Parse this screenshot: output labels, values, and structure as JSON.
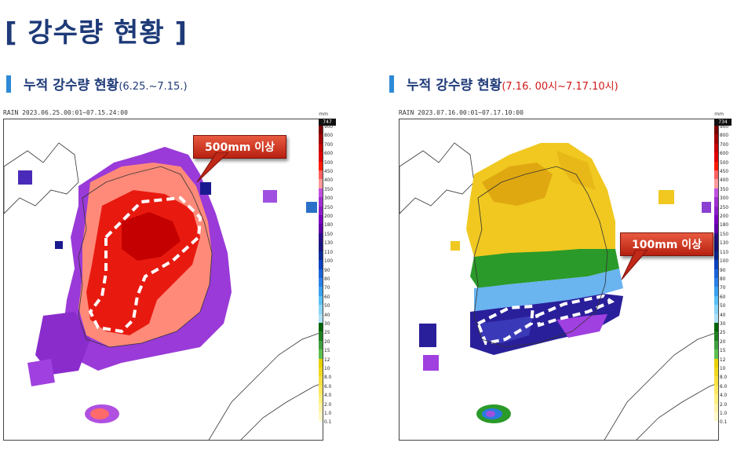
{
  "page": {
    "title": "[ 강수량 현황 ]"
  },
  "panels": [
    {
      "heading": "누적 강수량 현황",
      "period": "(6.25.~7.15.)",
      "map_header": "RAIN  2023.06.25.00:01~07.15.24:00",
      "unit": "mm",
      "max_value": "747",
      "callout": "500mm 이상",
      "period_color": "#1e3a78"
    },
    {
      "heading": "누적 강수량 현황",
      "period": "(7.16. 00시~7.17.10시)",
      "map_header": "RAIN  2023.07.16.00:01~07.17.10:00",
      "unit": "mm",
      "max_value": "734",
      "callout": "100mm 이상",
      "period_color": "#d01818"
    }
  ],
  "legend": {
    "ticks": [
      "900",
      "800",
      "700",
      "600",
      "500",
      "450",
      "400",
      "350",
      "300",
      "250",
      "200",
      "180",
      "150",
      "130",
      "110",
      "100",
      "90",
      "80",
      "70",
      "60",
      "50",
      "40",
      "30",
      "25",
      "20",
      "15",
      "12",
      "10",
      "8.0",
      "6.0",
      "4.0",
      "2.0",
      "1.0",
      "0.1"
    ],
    "colors": [
      "#7a0000",
      "#a00000",
      "#c80000",
      "#e00000",
      "#ff1a00",
      "#ff6060",
      "#ff9a9a",
      "#c050e0",
      "#a030d0",
      "#8a1fc8",
      "#7a00c0",
      "#6000a8",
      "#2a0f8a",
      "#1a1580",
      "#0a2a9a",
      "#0a42c0",
      "#1a64d8",
      "#2a80e8",
      "#3aa0f0",
      "#5ac0f8",
      "#8ad4f8",
      "#aee0f8",
      "#006400",
      "#208020",
      "#40a040",
      "#5ec050",
      "#e8d000",
      "#f0d820",
      "#f8e040",
      "#ffe860",
      "#fff080",
      "#fff4a8",
      "#fff8c8",
      "#ffffff"
    ]
  }
}
